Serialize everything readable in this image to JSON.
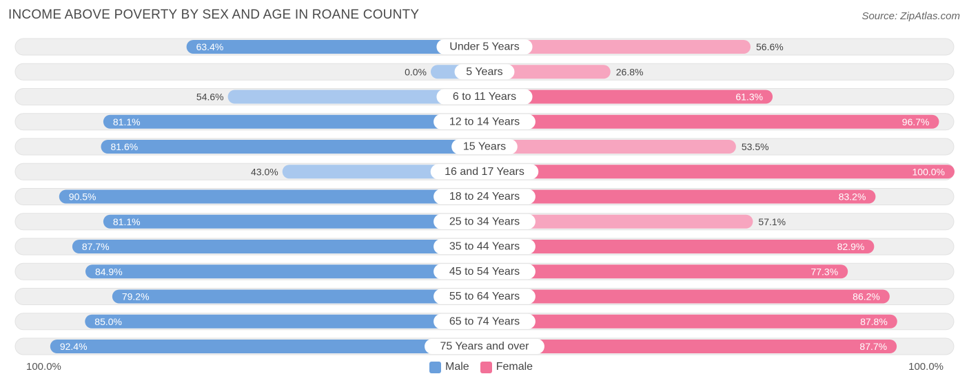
{
  "title": "INCOME ABOVE POVERTY BY SEX AND AGE IN ROANE COUNTY",
  "source": "Source: ZipAtlas.com",
  "colors": {
    "male": "#6a9fdc",
    "male_light": "#a9c8ee",
    "female": "#f27198",
    "female_light": "#f7a5bf",
    "track": "#efefef"
  },
  "chart_data": {
    "type": "bar",
    "orientation": "diverging-horizontal",
    "title": "INCOME ABOVE POVERTY BY SEX AND AGE IN ROANE COUNTY",
    "categories": [
      "Under 5 Years",
      "5 Years",
      "6 to 11 Years",
      "12 to 14 Years",
      "15 Years",
      "16 and 17 Years",
      "18 to 24 Years",
      "25 to 34 Years",
      "35 to 44 Years",
      "45 to 54 Years",
      "55 to 64 Years",
      "65 to 74 Years",
      "75 Years and over"
    ],
    "series": [
      {
        "name": "Male",
        "values": [
          63.4,
          0.0,
          54.6,
          81.1,
          81.6,
          43.0,
          90.5,
          81.1,
          87.7,
          84.9,
          79.2,
          85.0,
          92.4
        ]
      },
      {
        "name": "Female",
        "values": [
          56.6,
          26.8,
          61.3,
          96.7,
          53.5,
          100.0,
          83.2,
          57.1,
          82.9,
          77.3,
          86.2,
          87.8,
          87.7
        ]
      }
    ],
    "xlim": [
      0,
      100
    ],
    "axis_left_label": "100.0%",
    "axis_right_label": "100.0%",
    "legend": [
      "Male",
      "Female"
    ],
    "legend_position": "bottom-center"
  }
}
